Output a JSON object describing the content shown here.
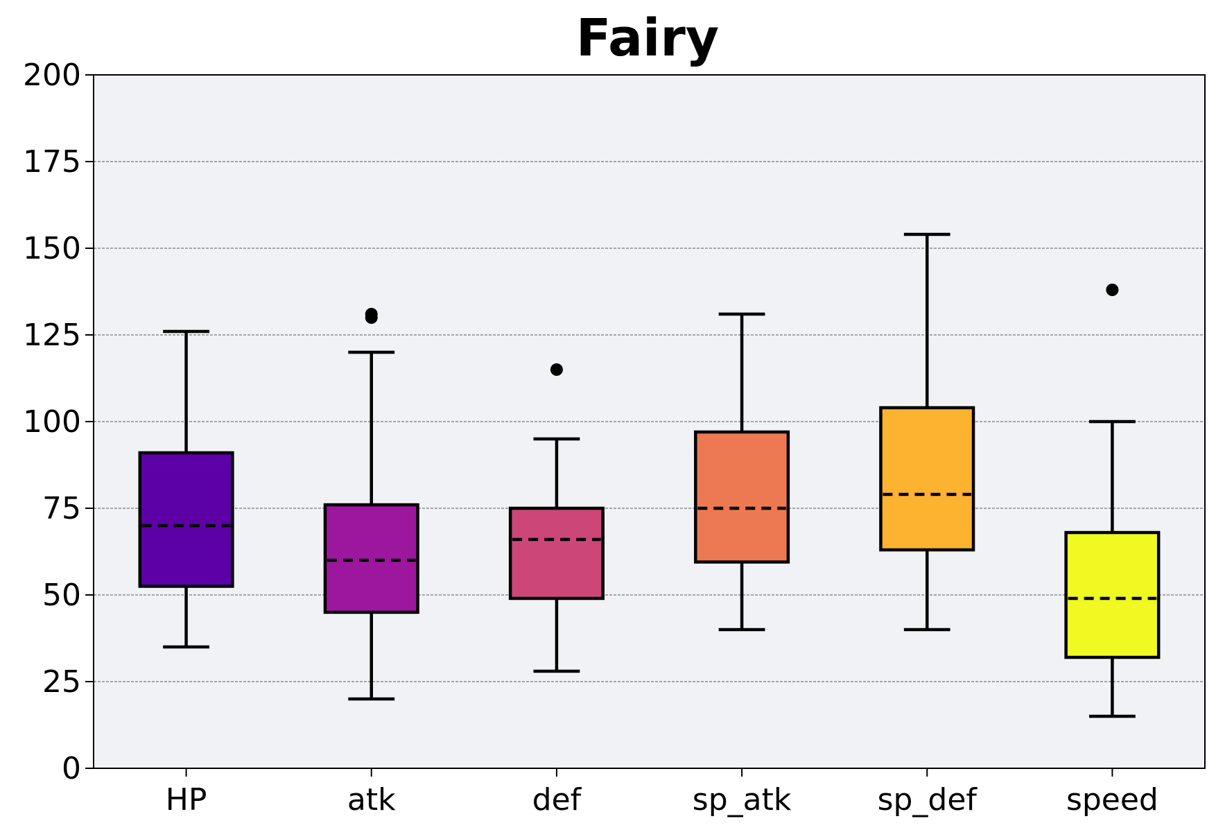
{
  "chart_data": {
    "type": "box",
    "title": "Fairy",
    "xlabel": "",
    "ylabel": "",
    "categories": [
      "HP",
      "atk",
      "def",
      "sp_atk",
      "sp_def",
      "speed"
    ],
    "ylim": [
      0,
      200
    ],
    "yticks": [
      0,
      25,
      50,
      75,
      100,
      125,
      150,
      175,
      200
    ],
    "grid": "horizontal dashed",
    "median_style": "dashed",
    "boxes": [
      {
        "category": "HP",
        "whisker_low": 35,
        "q1": 52.5,
        "median": 70,
        "q3": 91,
        "whisker_high": 126,
        "outliers": []
      },
      {
        "category": "atk",
        "whisker_low": 20,
        "q1": 45,
        "median": 60,
        "q3": 76,
        "whisker_high": 120,
        "outliers": [
          130,
          131
        ]
      },
      {
        "category": "def",
        "whisker_low": 28,
        "q1": 49,
        "median": 66,
        "q3": 75,
        "whisker_high": 95,
        "outliers": [
          115
        ]
      },
      {
        "category": "sp_atk",
        "whisker_low": 40,
        "q1": 59.5,
        "median": 75,
        "q3": 97,
        "whisker_high": 131,
        "outliers": []
      },
      {
        "category": "sp_def",
        "whisker_low": 40,
        "q1": 63,
        "median": 79,
        "q3": 104,
        "whisker_high": 154,
        "outliers": []
      },
      {
        "category": "speed",
        "whisker_low": 15,
        "q1": 32,
        "median": 49,
        "q3": 68,
        "whisker_high": 100,
        "outliers": [
          138
        ]
      }
    ],
    "colors": [
      "#5c01a6",
      "#9c179e",
      "#cc4778",
      "#ed7953",
      "#fdb32f",
      "#f0f921"
    ],
    "plot_background": "#f0f2f5",
    "edge_color": "#000000"
  }
}
